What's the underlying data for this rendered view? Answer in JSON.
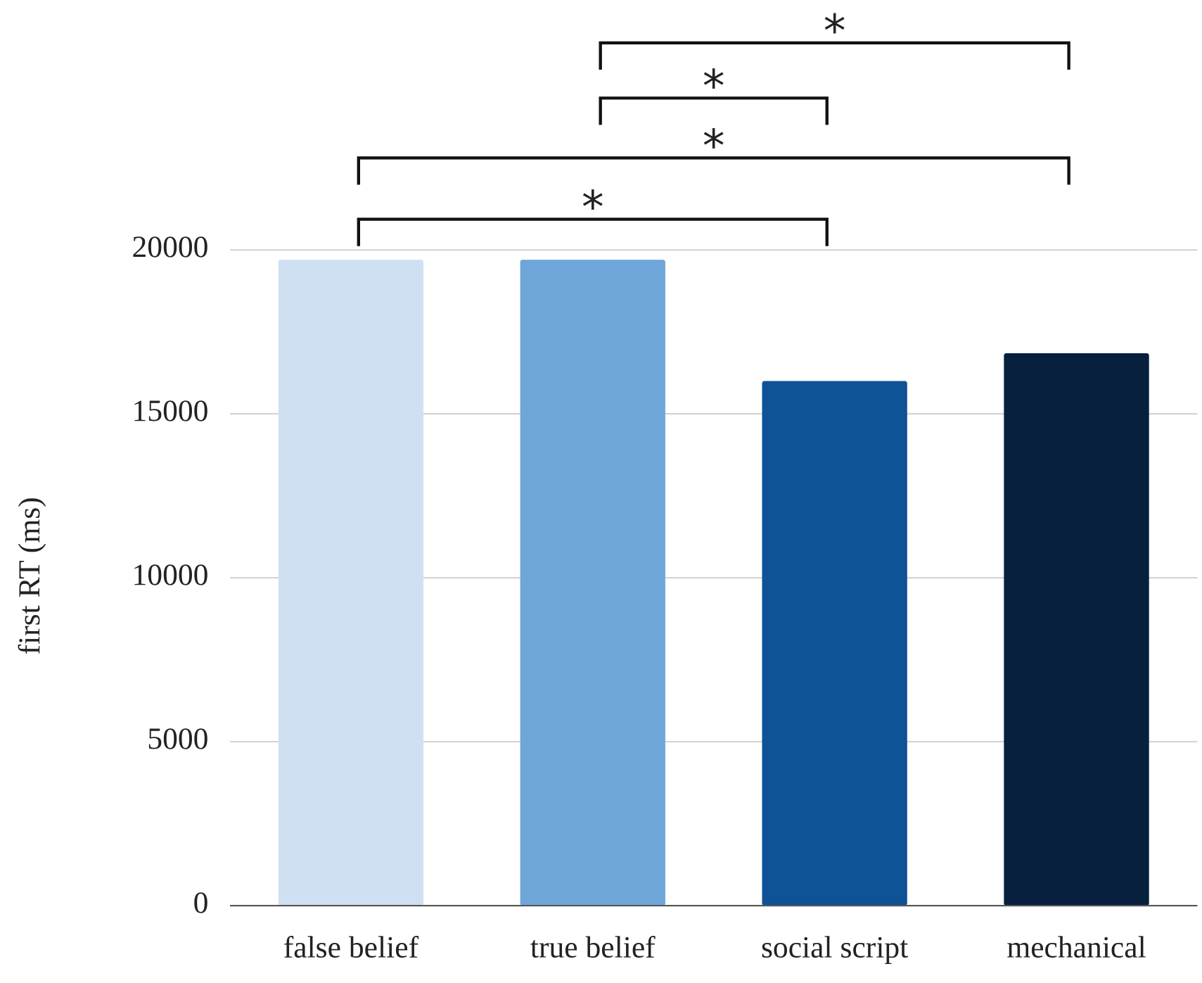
{
  "chart_data": {
    "type": "bar",
    "y_label": "first RT (ms)",
    "categories": [
      "false belief",
      "true belief",
      "social script",
      "mechanical"
    ],
    "values": [
      19700,
      19700,
      16000,
      16850
    ],
    "colors": [
      "#cfe0f2",
      "#6fa6da",
      "#0e5297",
      "#06203d"
    ],
    "ylim": [
      0,
      20000
    ],
    "yticks": [
      0,
      5000,
      10000,
      15000,
      20000
    ],
    "grid": true,
    "significance": [
      {
        "between": [
          "true belief",
          "mechanical"
        ],
        "label": "*"
      },
      {
        "between": [
          "true belief",
          "social script"
        ],
        "label": "*"
      },
      {
        "between": [
          "false belief",
          "mechanical"
        ],
        "label": "*"
      },
      {
        "between": [
          "false belief",
          "social script"
        ],
        "label": "*"
      }
    ]
  }
}
